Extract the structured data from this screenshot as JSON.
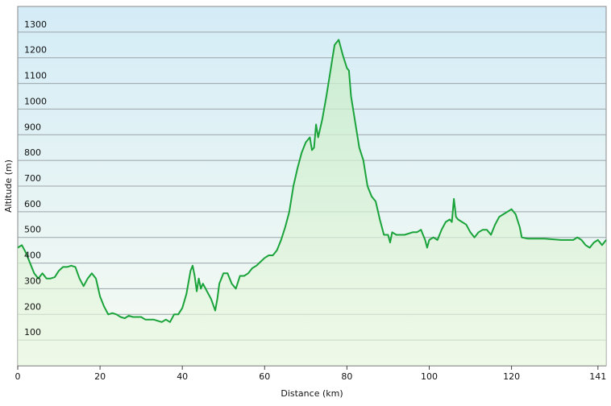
{
  "chart_data": {
    "type": "line",
    "x_label": "Distance  (km)",
    "y_label": "Altitude (m)",
    "xlim": [
      0,
      143
    ],
    "xticks": [
      0,
      20,
      40,
      60,
      80,
      100,
      120,
      141
    ],
    "ylim": [
      0,
      1400
    ],
    "yticks": [
      100,
      200,
      300,
      400,
      500,
      600,
      700,
      800,
      900,
      1000,
      1100,
      1200,
      1300
    ],
    "grid": true,
    "series": [
      {
        "color": "#1aa33a",
        "x": [
          0,
          1,
          2,
          3,
          4,
          5,
          6,
          7,
          8,
          9,
          10,
          11,
          12,
          13,
          14,
          15,
          16,
          17,
          18,
          19,
          20,
          21,
          22,
          23,
          24,
          25,
          26,
          27,
          28,
          30,
          31,
          33,
          35,
          36,
          37,
          38,
          39,
          40,
          41,
          42,
          42.5,
          43,
          43.5,
          44,
          44.5,
          45,
          46,
          47,
          48,
          48.5,
          49,
          50,
          51,
          52,
          53,
          54,
          55,
          56,
          57,
          58,
          59,
          60,
          61,
          62,
          63,
          64,
          65,
          66,
          67,
          68,
          69,
          70,
          71,
          71.5,
          72,
          72.5,
          73,
          74,
          75,
          76,
          76.5,
          77,
          78,
          79,
          80,
          80.5,
          81,
          82,
          83,
          84,
          85,
          86,
          87,
          88,
          89,
          90,
          90.5,
          91,
          92,
          94,
          96,
          97,
          98,
          98.5,
          99,
          99.5,
          100,
          101,
          102,
          103,
          104,
          105,
          105.5,
          106,
          106.5,
          107,
          108,
          109,
          110,
          111,
          112,
          113,
          114,
          115,
          116,
          117,
          118,
          119,
          120,
          121,
          122,
          122.5,
          124,
          128,
          132,
          135,
          136,
          137,
          138,
          139,
          140,
          141,
          142,
          143
        ],
        "values": [
          460,
          470,
          440,
          400,
          360,
          340,
          360,
          340,
          340,
          345,
          370,
          385,
          385,
          390,
          385,
          340,
          310,
          340,
          360,
          340,
          270,
          230,
          200,
          205,
          200,
          190,
          185,
          195,
          190,
          190,
          180,
          180,
          170,
          180,
          170,
          200,
          200,
          225,
          280,
          370,
          390,
          350,
          290,
          340,
          300,
          320,
          290,
          260,
          215,
          260,
          320,
          360,
          360,
          320,
          300,
          350,
          350,
          360,
          380,
          390,
          405,
          420,
          430,
          430,
          450,
          490,
          540,
          600,
          700,
          770,
          830,
          870,
          890,
          840,
          850,
          940,
          890,
          960,
          1050,
          1150,
          1200,
          1250,
          1270,
          1210,
          1160,
          1150,
          1050,
          950,
          850,
          800,
          700,
          660,
          640,
          570,
          510,
          510,
          480,
          520,
          510,
          510,
          520,
          520,
          530,
          510,
          490,
          460,
          490,
          500,
          490,
          530,
          560,
          570,
          560,
          650,
          580,
          570,
          560,
          550,
          520,
          500,
          520,
          530,
          530,
          510,
          550,
          580,
          590,
          600,
          610,
          590,
          540,
          500,
          495,
          495,
          490,
          490,
          500,
          490,
          470,
          460,
          480,
          490,
          470,
          490
        ]
      }
    ]
  }
}
